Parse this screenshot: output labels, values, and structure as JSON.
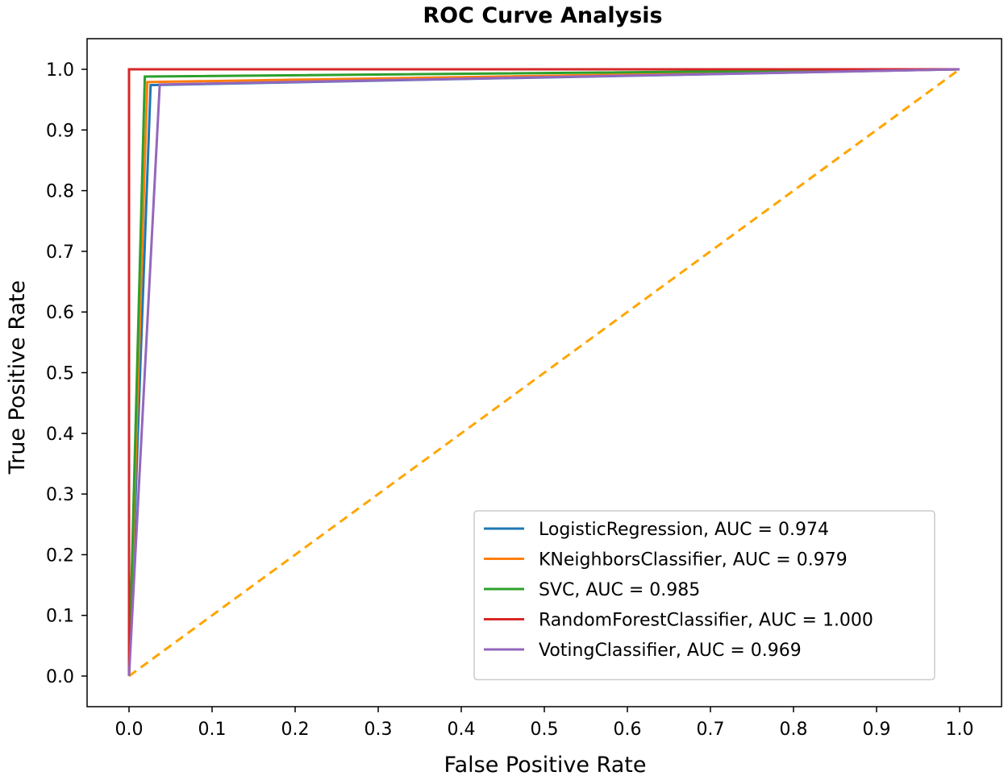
{
  "chart_data": {
    "type": "line",
    "title": "ROC Curve Analysis",
    "xlabel": "False Positive Rate",
    "ylabel": "True Positive Rate",
    "xlim": [
      0.0,
      1.0
    ],
    "ylim": [
      0.0,
      1.0
    ],
    "xticks": [
      "0.0",
      "0.1",
      "0.2",
      "0.3",
      "0.4",
      "0.5",
      "0.6",
      "0.7",
      "0.8",
      "0.9",
      "1.0"
    ],
    "yticks": [
      "0.0",
      "0.1",
      "0.2",
      "0.3",
      "0.4",
      "0.5",
      "0.6",
      "0.7",
      "0.8",
      "0.9",
      "1.0"
    ],
    "grid": false,
    "legend_position": "lower-right",
    "series": [
      {
        "name": "LogisticRegression, AUC = 0.974",
        "color": "#1f77b4",
        "x": [
          0.0,
          0.026,
          1.0
        ],
        "y": [
          0.0,
          0.974,
          1.0
        ]
      },
      {
        "name": "KNeighborsClassifier, AUC = 0.979",
        "color": "#ff7f0e",
        "x": [
          0.0,
          0.022,
          1.0
        ],
        "y": [
          0.0,
          0.979,
          1.0
        ]
      },
      {
        "name": "SVC, AUC = 0.985",
        "color": "#2ca02c",
        "x": [
          0.0,
          0.019,
          1.0
        ],
        "y": [
          0.0,
          0.988,
          1.0
        ]
      },
      {
        "name": "RandomForestClassifier, AUC = 1.000",
        "color": "#d62728",
        "x": [
          0.0,
          0.0,
          1.0
        ],
        "y": [
          0.0,
          1.0,
          1.0
        ]
      },
      {
        "name": "VotingClassifier, AUC = 0.969",
        "color": "#9467bd",
        "x": [
          0.0,
          0.037,
          1.0
        ],
        "y": [
          0.0,
          0.975,
          1.0
        ]
      }
    ],
    "reference_line": {
      "color": "#ffa500",
      "style": "dashed",
      "x": [
        0.0,
        1.0
      ],
      "y": [
        0.0,
        1.0
      ]
    }
  }
}
